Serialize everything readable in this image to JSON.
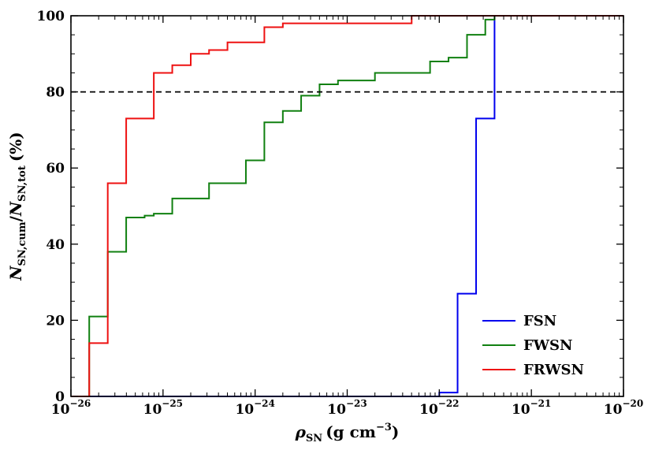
{
  "chart_data": {
    "type": "line",
    "step": true,
    "xlabel": "ρSN (g cm−3)",
    "xlabel_parts": {
      "symbol": "ρ",
      "sub": "SN",
      "units": "(g cm",
      "exp": "−3",
      "close": ")"
    },
    "ylabel": "NSN,cum/NSN,tot (%)",
    "ylabel_parts": {
      "n1": "N",
      "sub1": "SN,cum",
      "slash": "/",
      "n2": "N",
      "sub2": "SN,tot",
      "units": "(%)"
    },
    "xscale": "log",
    "xlim": [
      1e-26,
      1e-20
    ],
    "ylim": [
      0,
      100
    ],
    "x_ticks": [
      {
        "exp": -26,
        "base": "10",
        "power": "−26"
      },
      {
        "exp": -25,
        "base": "10",
        "power": "−25"
      },
      {
        "exp": -24,
        "base": "10",
        "power": "−24"
      },
      {
        "exp": -23,
        "base": "10",
        "power": "−23"
      },
      {
        "exp": -22,
        "base": "10",
        "power": "−22"
      },
      {
        "exp": -21,
        "base": "10",
        "power": "−21"
      },
      {
        "exp": -20,
        "base": "10",
        "power": "−20"
      }
    ],
    "y_ticks": [
      {
        "value": 0,
        "label": "0"
      },
      {
        "value": 20,
        "label": "20"
      },
      {
        "value": 40,
        "label": "40"
      },
      {
        "value": 60,
        "label": "60"
      },
      {
        "value": 80,
        "label": "80"
      },
      {
        "value": 100,
        "label": "100"
      }
    ],
    "reference_line": {
      "y": 80,
      "style": "dashed",
      "color": "#000000"
    },
    "legend_position": "lower-right",
    "series": [
      {
        "name": "FSN",
        "color": "#0000ee",
        "points": [
          [
            1e-26,
            0
          ],
          [
            1e-22,
            0
          ],
          [
            1e-22,
            1
          ],
          [
            1.58e-22,
            1
          ],
          [
            1.58e-22,
            27
          ],
          [
            2.51e-22,
            27
          ],
          [
            2.51e-22,
            73
          ],
          [
            3.98e-22,
            73
          ],
          [
            3.98e-22,
            100
          ],
          [
            1e-20,
            100
          ]
        ]
      },
      {
        "name": "FWSN",
        "color": "#108010",
        "points": [
          [
            1e-26,
            0
          ],
          [
            1.58e-26,
            0
          ],
          [
            1.58e-26,
            21
          ],
          [
            2.51e-26,
            21
          ],
          [
            2.51e-26,
            38
          ],
          [
            3.98e-26,
            38
          ],
          [
            3.98e-26,
            47
          ],
          [
            6.31e-26,
            47
          ],
          [
            6.31e-26,
            47.5
          ],
          [
            7.94e-26,
            47.5
          ],
          [
            7.94e-26,
            48
          ],
          [
            1.26e-25,
            48
          ],
          [
            1.26e-25,
            52
          ],
          [
            3.16e-25,
            52
          ],
          [
            3.16e-25,
            56
          ],
          [
            7.94e-25,
            56
          ],
          [
            7.94e-25,
            62
          ],
          [
            1.26e-24,
            62
          ],
          [
            1.26e-24,
            72
          ],
          [
            2e-24,
            72
          ],
          [
            2e-24,
            75
          ],
          [
            3.16e-24,
            75
          ],
          [
            3.16e-24,
            79
          ],
          [
            5.01e-24,
            79
          ],
          [
            5.01e-24,
            82
          ],
          [
            7.94e-24,
            82
          ],
          [
            7.94e-24,
            83
          ],
          [
            2e-23,
            83
          ],
          [
            2e-23,
            85
          ],
          [
            7.94e-23,
            85
          ],
          [
            7.94e-23,
            88
          ],
          [
            1.26e-22,
            88
          ],
          [
            1.26e-22,
            89
          ],
          [
            2e-22,
            89
          ],
          [
            2e-22,
            95
          ],
          [
            3.16e-22,
            95
          ],
          [
            3.16e-22,
            99
          ],
          [
            3.98e-22,
            99
          ],
          [
            3.98e-22,
            100
          ],
          [
            1e-20,
            100
          ]
        ]
      },
      {
        "name": "FRWSN",
        "color": "#ee1111",
        "points": [
          [
            1e-26,
            0
          ],
          [
            1.58e-26,
            0
          ],
          [
            1.58e-26,
            14
          ],
          [
            2.51e-26,
            14
          ],
          [
            2.51e-26,
            56
          ],
          [
            3.98e-26,
            56
          ],
          [
            3.98e-26,
            73
          ],
          [
            7.94e-26,
            73
          ],
          [
            7.94e-26,
            85
          ],
          [
            1.26e-25,
            85
          ],
          [
            1.26e-25,
            87
          ],
          [
            2e-25,
            87
          ],
          [
            2e-25,
            90
          ],
          [
            3.16e-25,
            90
          ],
          [
            3.16e-25,
            91
          ],
          [
            5.01e-25,
            91
          ],
          [
            5.01e-25,
            93
          ],
          [
            1.26e-24,
            93
          ],
          [
            1.26e-24,
            97
          ],
          [
            2e-24,
            97
          ],
          [
            2e-24,
            98
          ],
          [
            5.01e-23,
            98
          ],
          [
            5.01e-23,
            100
          ],
          [
            1e-20,
            100
          ]
        ]
      }
    ]
  }
}
